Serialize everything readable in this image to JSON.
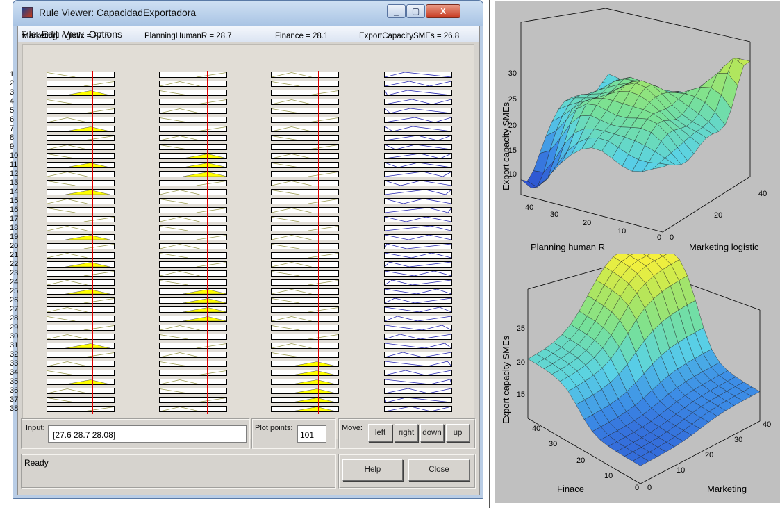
{
  "window": {
    "title": "Rule Viewer: CapacidadExportadora",
    "minimize_glyph": "_",
    "maximize_glyph": "▢",
    "close_glyph": "X",
    "app_icon": "matlab-fuzzy-icon"
  },
  "menu": [
    "File",
    "Edit",
    "View",
    "Options"
  ],
  "rule_viewer": {
    "columns": [
      {
        "label": "MarketingLogistic = 27.6",
        "value": 27.6
      },
      {
        "label": "PlanningHumanR = 28.7",
        "value": 28.7
      },
      {
        "label": "Finance = 28.1",
        "value": 28.1
      },
      {
        "label": "ExportCapacitySMEs = 26.8",
        "value": 26.8
      }
    ],
    "rule_numbers": [
      "1",
      "2",
      "3",
      "4",
      "5",
      "6",
      "7",
      "8",
      "9",
      "10",
      "11",
      "12",
      "13",
      "14",
      "15",
      "16",
      "17",
      "18",
      "19",
      "20",
      "21",
      "22",
      "23",
      "24",
      "25",
      "26",
      "27",
      "28",
      "29",
      "30",
      "31",
      "32",
      "33",
      "34",
      "35",
      "36",
      "37",
      "38"
    ],
    "marketing_fired_rules": [
      3,
      7,
      11,
      14,
      19,
      22,
      25,
      31,
      35
    ],
    "planning_fired_rules": [
      10,
      11,
      12,
      25,
      26,
      27,
      28
    ],
    "finance_fired_rules": [
      33,
      34,
      35,
      36,
      37,
      38
    ]
  },
  "controls": {
    "input_label": "Input:",
    "input_value": "[27.6 28.7 28.08]",
    "plot_points_label": "Plot points:",
    "plot_points_value": "101",
    "move_label": "Move:",
    "move_buttons": [
      "left",
      "right",
      "down",
      "up"
    ],
    "status": "Ready",
    "help_label": "Help",
    "close_label": "Close"
  },
  "surface_plots": [
    {
      "zlabel": "Export capacity SMEs",
      "xlabel": "Planning human R",
      "ylabel": "Marketing logistic",
      "z_ticks": [
        "30",
        "25",
        "20",
        "15",
        "10"
      ],
      "x_ticks": [
        "40",
        "30",
        "20",
        "10",
        "0"
      ],
      "y_ticks": [
        "0",
        "20",
        "40"
      ]
    },
    {
      "zlabel": "Export capacity SMEs",
      "xlabel": "Finace",
      "ylabel": "Marketing",
      "z_ticks": [
        "25",
        "20",
        "15"
      ],
      "x_ticks": [
        "40",
        "30",
        "20",
        "10",
        "0"
      ],
      "y_ticks": [
        "0",
        "10",
        "20",
        "30",
        "40"
      ]
    }
  ],
  "colors": {
    "fired_mf": "#ffff00",
    "output_mf": "#2a2ab0",
    "input_mf": "#9a9a50",
    "indicator_line": "#e00000"
  }
}
